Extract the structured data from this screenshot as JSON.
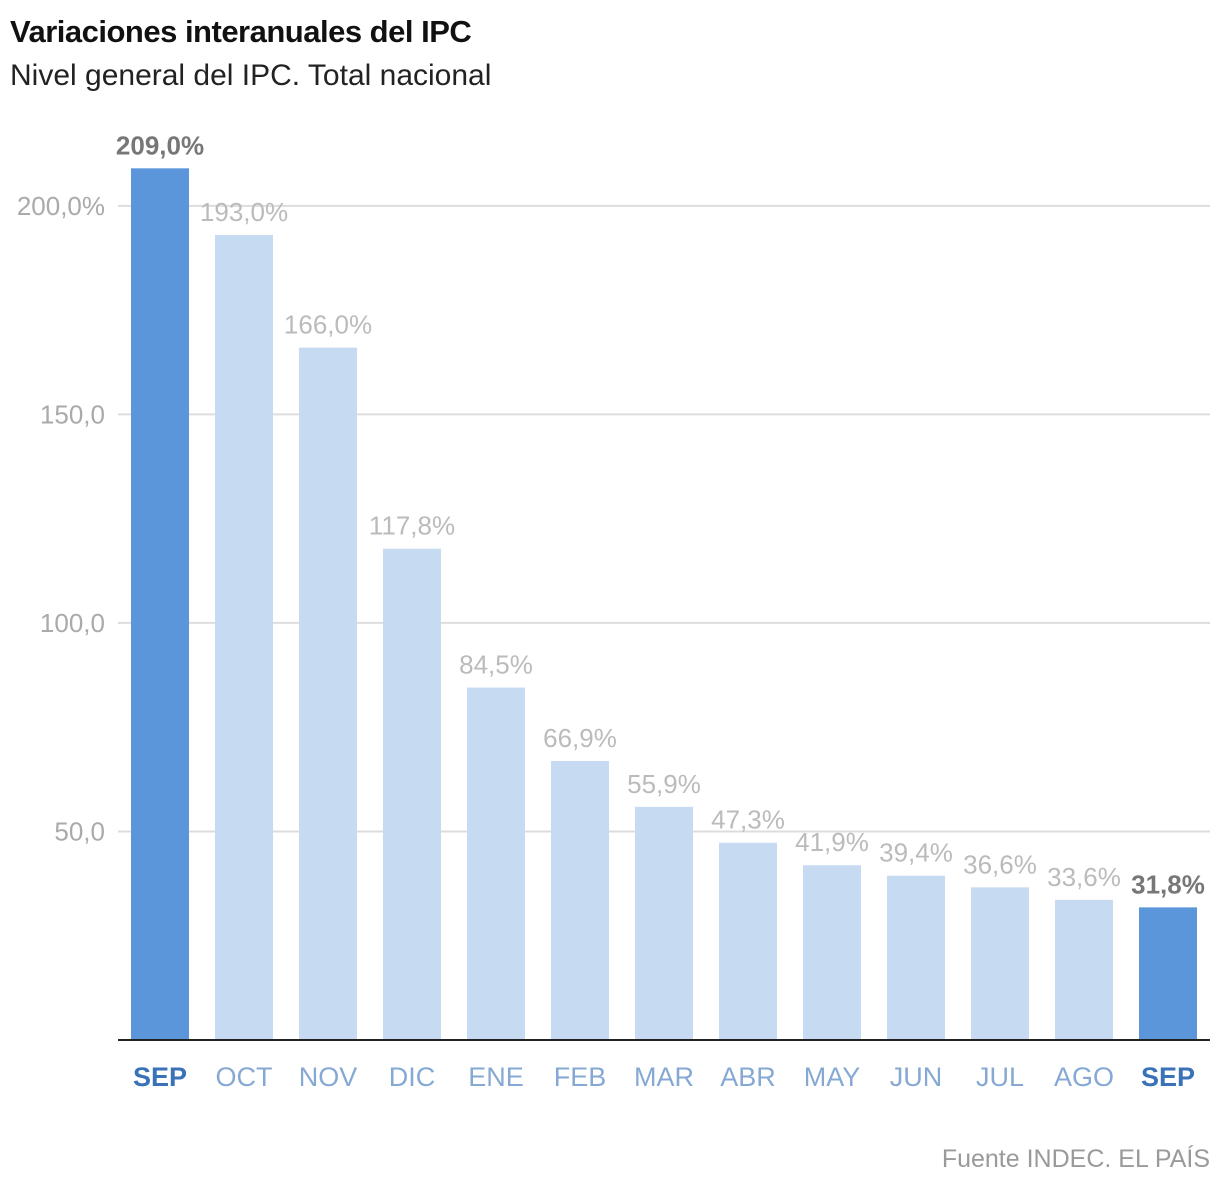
{
  "title": "Variaciones interanuales del IPC",
  "subtitle": "Nivel general del IPC. Total nacional",
  "source": "Fuente INDEC. EL PAÍS",
  "colors": {
    "highlight": "#5c96da",
    "normal": "#c6daf1",
    "highlight_label": "#777777",
    "normal_label": "#bbbbbb",
    "highlight_tick": "#3a72b8",
    "normal_tick": "#86a9d4",
    "grid": "#dddddd",
    "axis_label": "#aaaaaa"
  },
  "chart_data": {
    "type": "bar",
    "title": "Variaciones interanuales del IPC",
    "subtitle": "Nivel general del IPC. Total nacional",
    "xlabel": "",
    "ylabel": "",
    "ylim": [
      0,
      220
    ],
    "grid": true,
    "categories": [
      "SEP",
      "OCT",
      "NOV",
      "DIC",
      "ENE",
      "FEB",
      "MAR",
      "ABR",
      "MAY",
      "JUN",
      "JUL",
      "AGO",
      "SEP"
    ],
    "values": [
      209.0,
      193.0,
      166.0,
      117.8,
      84.5,
      66.9,
      55.9,
      47.3,
      41.9,
      39.4,
      36.6,
      33.6,
      31.8
    ],
    "value_labels": [
      "209,0%",
      "193,0%",
      "166,0%",
      "117,8%",
      "84,5%",
      "66,9%",
      "55,9%",
      "47,3%",
      "41,9%",
      "39,4%",
      "36,6%",
      "33,6%",
      "31,8%"
    ],
    "highlighted": [
      true,
      false,
      false,
      false,
      false,
      false,
      false,
      false,
      false,
      false,
      false,
      false,
      true
    ],
    "y_ticks": [
      {
        "value": 50,
        "label": "50,0"
      },
      {
        "value": 100,
        "label": "100,0"
      },
      {
        "value": 150,
        "label": "150,0"
      },
      {
        "value": 200,
        "label": "200,0%"
      }
    ]
  }
}
